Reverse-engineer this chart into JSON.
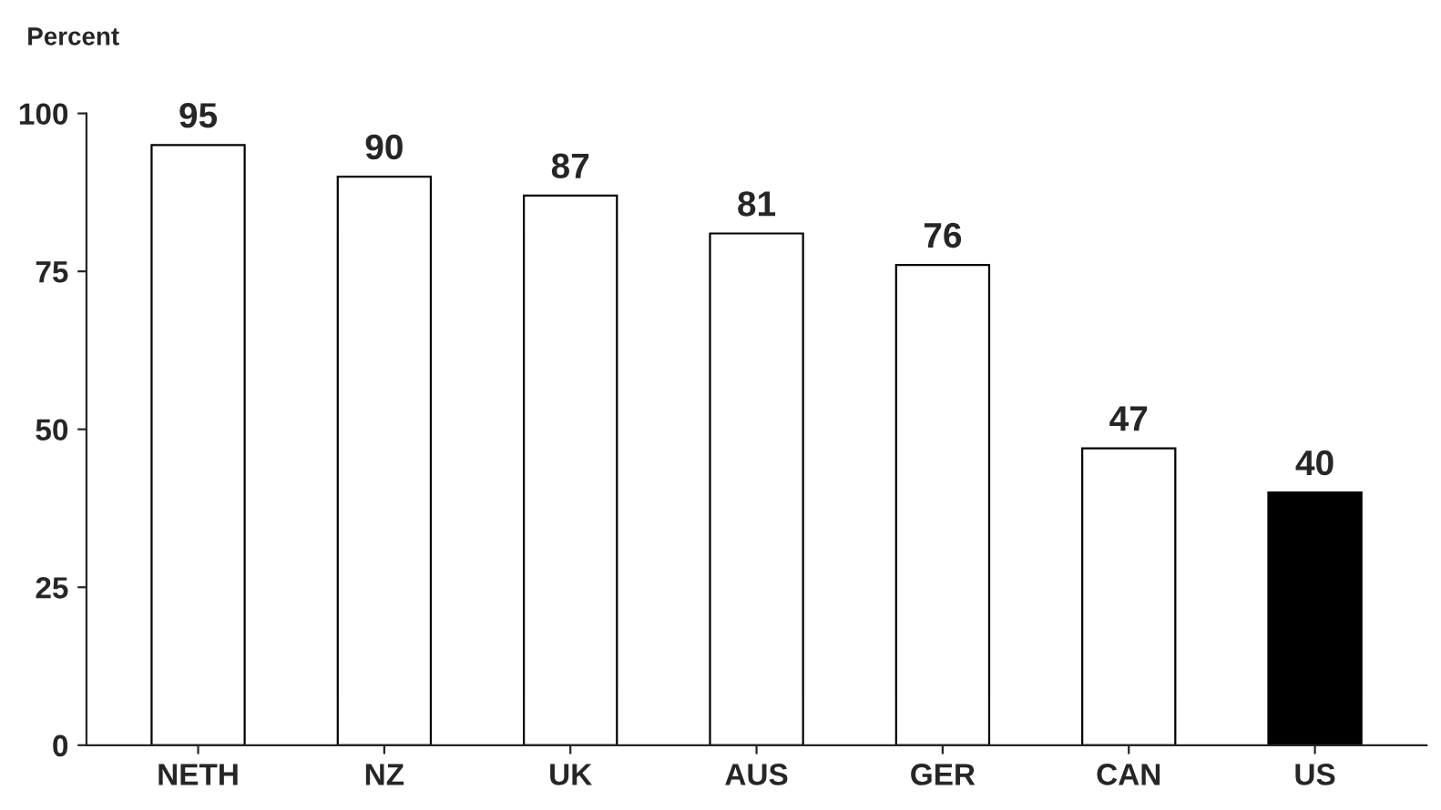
{
  "chart_data": {
    "type": "bar",
    "ylabel": "Percent",
    "categories": [
      "NETH",
      "NZ",
      "UK",
      "AUS",
      "GER",
      "CAN",
      "US"
    ],
    "values": [
      95,
      90,
      87,
      81,
      76,
      47,
      40
    ],
    "colors": [
      "#ffffff",
      "#ffffff",
      "#ffffff",
      "#ffffff",
      "#ffffff",
      "#ffffff",
      "#000000"
    ],
    "ylim": [
      0,
      100
    ],
    "yticks": [
      0,
      25,
      50,
      75,
      100
    ],
    "data_labels": true,
    "grid": false,
    "legend": false
  }
}
